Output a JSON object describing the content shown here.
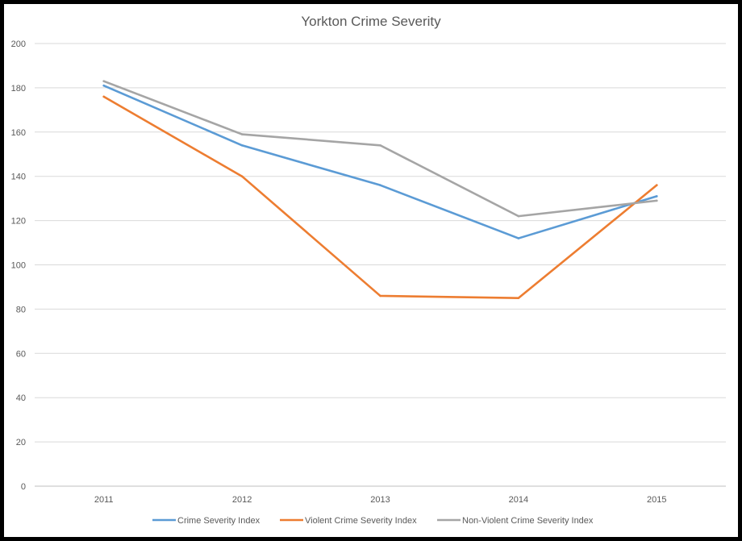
{
  "chart_data": {
    "type": "line",
    "title": "Yorkton Crime Severity",
    "xlabel": "",
    "ylabel": "",
    "categories": [
      "2011",
      "2012",
      "2013",
      "2014",
      "2015"
    ],
    "ylim": [
      0,
      200
    ],
    "yticks": [
      0,
      20,
      40,
      60,
      80,
      100,
      120,
      140,
      160,
      180,
      200
    ],
    "grid": "horizontal",
    "legend_position": "bottom",
    "series": [
      {
        "name": "Crime Severity Index",
        "color": "#5B9BD5",
        "values": [
          181,
          154,
          136,
          112,
          131
        ]
      },
      {
        "name": "Violent Crime Severity Index",
        "color": "#ED7D31",
        "values": [
          176,
          140,
          86,
          85,
          136
        ]
      },
      {
        "name": "Non-Violent Crime Severity Index",
        "color": "#A5A5A5",
        "values": [
          183,
          159,
          154,
          122,
          129
        ]
      }
    ]
  }
}
